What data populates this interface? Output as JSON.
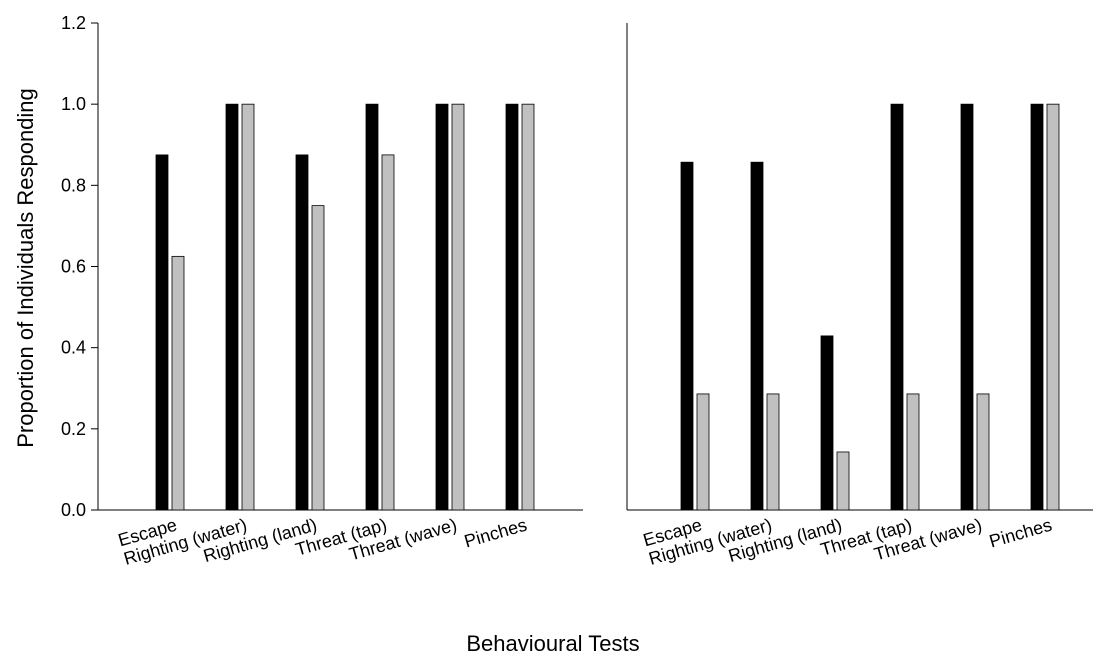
{
  "figure": {
    "ylabel": "Proportion of Individuals Responding",
    "xlabel": "Behavioural Tests",
    "colors": {
      "series_a": "#000000",
      "series_b": "#c0c0c0",
      "axis": "#000000"
    }
  },
  "chart_data": [
    {
      "type": "bar",
      "categories": [
        "Escape",
        "Righting (water)",
        "Righting (land)",
        "Threat (tap)",
        "Threat (wave)",
        "Pinches"
      ],
      "series": [
        {
          "values": [
            0.875,
            1.0,
            0.875,
            1.0,
            1.0,
            1.0
          ]
        },
        {
          "values": [
            0.625,
            1.0,
            0.75,
            0.875,
            1.0,
            1.0
          ]
        }
      ],
      "ylim": [
        0,
        1.2
      ],
      "yticks": [
        "0.0",
        "0.2",
        "0.4",
        "0.6",
        "0.8",
        "1.0",
        "1.2"
      ],
      "ylabel": "Proportion of Individuals Responding",
      "grid": false,
      "legend": "none"
    },
    {
      "type": "bar",
      "categories": [
        "Escape",
        "Righting (water)",
        "Righting (land)",
        "Threat (tap)",
        "Threat (wave)",
        "Pinches"
      ],
      "series": [
        {
          "values": [
            0.857,
            0.857,
            0.429,
            1.0,
            1.0,
            1.0
          ]
        },
        {
          "values": [
            0.286,
            0.286,
            0.143,
            0.286,
            0.286,
            1.0
          ]
        }
      ],
      "ylim": [
        0,
        1.2
      ],
      "grid": false,
      "legend": "none"
    }
  ]
}
